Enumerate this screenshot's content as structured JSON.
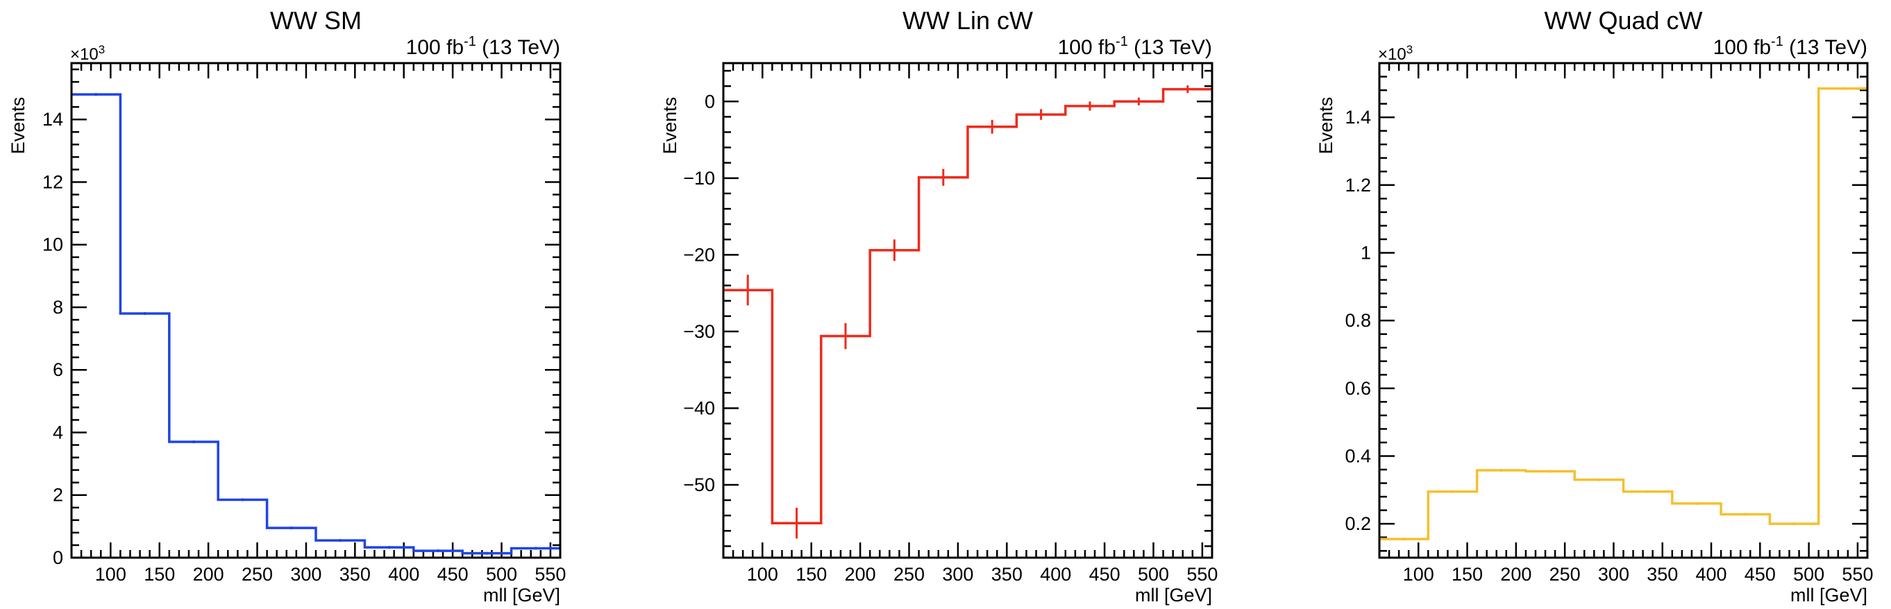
{
  "chart_data": [
    {
      "type": "histogram",
      "title": "WW SM",
      "lumi_label": "100 fb",
      "lumi_exponent": "-1",
      "energy_label": " (13 TeV)",
      "xlabel": "mll [GeV]",
      "ylabel": "Events",
      "y_multiplier_prefix": "×10",
      "y_multiplier_exponent": "3",
      "y_scale": 1000,
      "xlim": [
        60,
        560
      ],
      "ylim": [
        0,
        15.8
      ],
      "xticks": [
        100,
        150,
        200,
        250,
        300,
        350,
        400,
        450,
        500,
        550
      ],
      "xtick_labels": [
        "100",
        "150",
        "200",
        "250",
        "300",
        "350",
        "400",
        "450",
        "500",
        "550"
      ],
      "yticks": [
        0,
        2,
        4,
        6,
        8,
        10,
        12,
        14
      ],
      "ytick_labels": [
        "0",
        "2",
        "4",
        "6",
        "8",
        "10",
        "12",
        "14"
      ],
      "y_minor_step": 0.4,
      "color": "#1f44e6",
      "bin_edges": [
        60,
        110,
        160,
        210,
        260,
        310,
        360,
        410,
        460,
        510,
        560
      ],
      "values": [
        14.8,
        7.8,
        3.7,
        1.85,
        0.95,
        0.55,
        0.33,
        0.22,
        0.14,
        0.3
      ],
      "errors": [
        0.02,
        0.02,
        0.01,
        0.01,
        0.01,
        0.01,
        0.01,
        0.01,
        0.01,
        0.01
      ]
    },
    {
      "type": "histogram",
      "title": "WW Lin cW",
      "lumi_label": "100 fb",
      "lumi_exponent": "-1",
      "energy_label": " (13 TeV)",
      "xlabel": "mll [GeV]",
      "ylabel": "Events",
      "y_multiplier_prefix": "",
      "y_multiplier_exponent": "",
      "y_scale": 1,
      "xlim": [
        60,
        560
      ],
      "ylim": [
        -59.5,
        5
      ],
      "xticks": [
        100,
        150,
        200,
        250,
        300,
        350,
        400,
        450,
        500,
        550
      ],
      "xtick_labels": [
        "100",
        "150",
        "200",
        "250",
        "300",
        "350",
        "400",
        "450",
        "500",
        "550"
      ],
      "yticks": [
        -50,
        -40,
        -30,
        -20,
        -10,
        0
      ],
      "ytick_labels": [
        "−50",
        "−40",
        "−30",
        "−20",
        "−10",
        "0"
      ],
      "y_minor_step": 2,
      "color": "#ee2a1b",
      "bin_edges": [
        60,
        110,
        160,
        210,
        260,
        310,
        360,
        410,
        460,
        510,
        560
      ],
      "values": [
        -24.6,
        -55.0,
        -30.6,
        -19.4,
        -9.9,
        -3.3,
        -1.7,
        -0.6,
        0.0,
        1.6
      ],
      "errors": [
        2.0,
        2.0,
        1.7,
        1.4,
        1.1,
        0.9,
        0.7,
        0.6,
        0.5,
        0.5
      ]
    },
    {
      "type": "histogram",
      "title": "WW Quad cW",
      "lumi_label": "100 fb",
      "lumi_exponent": "-1",
      "energy_label": " (13 TeV)",
      "xlabel": "mll [GeV]",
      "ylabel": "Events",
      "y_multiplier_prefix": "×10",
      "y_multiplier_exponent": "3",
      "y_scale": 1000,
      "xlim": [
        60,
        560
      ],
      "ylim": [
        0.1,
        1.56
      ],
      "xticks": [
        100,
        150,
        200,
        250,
        300,
        350,
        400,
        450,
        500,
        550
      ],
      "xtick_labels": [
        "100",
        "150",
        "200",
        "250",
        "300",
        "350",
        "400",
        "450",
        "500",
        "550"
      ],
      "yticks": [
        0.2,
        0.4,
        0.6,
        0.8,
        1.0,
        1.2,
        1.4
      ],
      "ytick_labels": [
        "0.2",
        "0.4",
        "0.6",
        "0.8",
        "1",
        "1.2",
        "1.4"
      ],
      "y_minor_step": 0.04,
      "color": "#f5c02f",
      "bin_edges": [
        60,
        110,
        160,
        210,
        260,
        310,
        360,
        410,
        460,
        510,
        560
      ],
      "values": [
        0.155,
        0.295,
        0.358,
        0.355,
        0.33,
        0.295,
        0.26,
        0.228,
        0.2,
        1.485
      ],
      "errors": [
        0.002,
        0.002,
        0.002,
        0.002,
        0.002,
        0.002,
        0.002,
        0.002,
        0.002,
        0.002
      ]
    }
  ]
}
